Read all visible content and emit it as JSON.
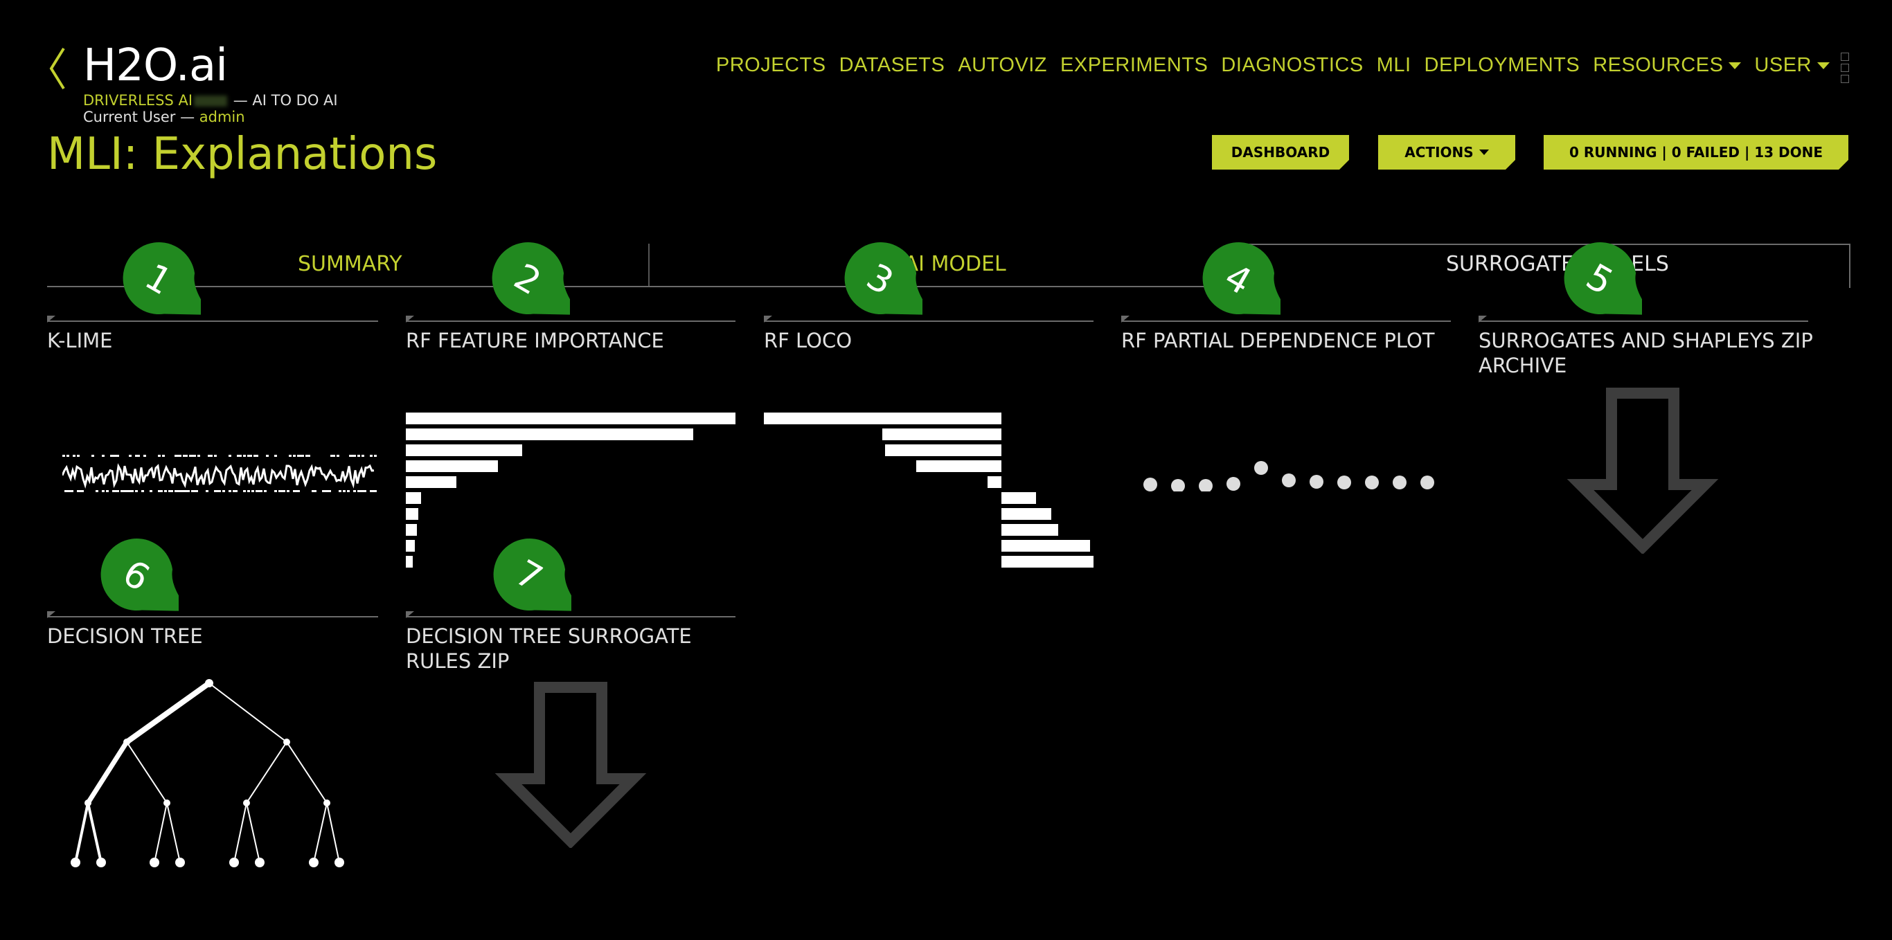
{
  "header": {
    "logo": "H2O.ai",
    "subtitle_prefix": "DRIVERLESS AI",
    "subtitle_suffix": " — AI TO DO AI",
    "user_prefix": "Current User — ",
    "user_name": "admin",
    "page_title": "MLI: Explanations"
  },
  "nav": {
    "items": [
      "PROJECTS",
      "DATASETS",
      "AUTOVIZ",
      "EXPERIMENTS",
      "DIAGNOSTICS",
      "MLI",
      "DEPLOYMENTS"
    ],
    "resources": "RESOURCES",
    "user": "USER"
  },
  "buttons": {
    "dashboard": "DASHBOARD",
    "actions": "ACTIONS",
    "status": "0 RUNNING | 0 FAILED | 13 DONE"
  },
  "tabs": {
    "summary": "SUMMARY",
    "dai_model": "DAI MODEL",
    "surrogate_models": "SURROGATE MODELS"
  },
  "cards": {
    "klime": "K-LIME",
    "rf_importance": "RF FEATURE IMPORTANCE",
    "rf_loco": "RF LOCO",
    "rf_pdp": "RF PARTIAL DEPENDENCE PLOT",
    "shapley_zip": "SURROGATES AND SHAPLEYS ZIP ARCHIVE",
    "decision_tree": "DECISION TREE",
    "dt_rules_zip": "DECISION TREE SURROGATE RULES ZIP"
  },
  "markers": [
    "1",
    "2",
    "3",
    "4",
    "5",
    "6",
    "7"
  ],
  "colors": {
    "accent": "#c3d12f",
    "marker": "#21891f",
    "background": "#000000",
    "arrow": "#3d3d3d"
  },
  "icons": {
    "back": "chevron-left-icon",
    "download": "download-arrow-icon",
    "apps": "app-grid-icon"
  }
}
